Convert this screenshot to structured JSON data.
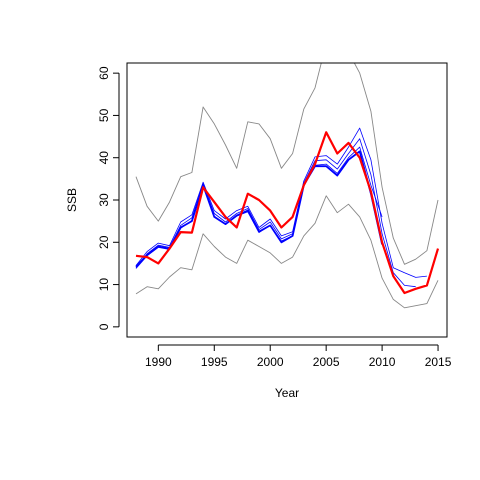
{
  "chart_data": {
    "type": "line",
    "title": "",
    "xlabel": "Year",
    "ylabel": "SSB",
    "xlim": [
      1987.2,
      2015.8
    ],
    "ylim": [
      -2.4,
      62.4
    ],
    "xticks": [
      1990,
      1995,
      2000,
      2005,
      2010,
      2015
    ],
    "yticks": [
      0,
      10,
      20,
      30,
      40,
      50,
      60
    ],
    "grid": false,
    "legend": "none",
    "series": [
      {
        "color": "#ff0000",
        "width": 2.2,
        "x": [
          1988,
          1989,
          1990,
          1991,
          1992,
          1993,
          1994,
          1995,
          1996,
          1997,
          1998,
          1999,
          2000,
          2001,
          2002,
          2003,
          2004,
          2005,
          2006,
          2007,
          2008,
          2009,
          2010,
          2011,
          2012,
          2013,
          2014,
          2015
        ],
        "y": [
          16.8,
          16.5,
          15.0,
          18.5,
          22.4,
          22.3,
          33.0,
          29.5,
          26.0,
          23.5,
          31.5,
          30.0,
          27.5,
          23.5,
          26.0,
          33.5,
          38.5,
          46.0,
          41.0,
          43.5,
          40.0,
          32.0,
          20.0,
          12.0,
          8.0,
          9.0,
          9.8,
          18.5
        ]
      },
      {
        "color": "#0000ff",
        "width": 1.8,
        "x": [
          1988,
          1989,
          1990,
          1991,
          1992,
          1993,
          1994,
          1995,
          1996,
          1997,
          1998,
          1999,
          2000,
          2001,
          2002,
          2003,
          2004,
          2005,
          2006,
          2007,
          2008,
          2009,
          2010
        ],
        "y": [
          14.2,
          17.0,
          19.0,
          18.5,
          23.5,
          25.0,
          33.5,
          26.0,
          24.3,
          26.3,
          27.5,
          22.5,
          24.0,
          20.0,
          21.5,
          33.5,
          38.0,
          38.0,
          35.8,
          39.5,
          41.5,
          31.5,
          19.5
        ]
      },
      {
        "color": "#0000ff",
        "width": 0.8,
        "x": [
          1988,
          1989,
          1990,
          1991,
          1992,
          1993,
          1994,
          1995,
          1996,
          1997,
          1998,
          1999,
          2000,
          2001,
          2002,
          2003,
          2004,
          2005,
          2006,
          2007,
          2008,
          2009,
          2010,
          2011,
          2012,
          2013,
          2014
        ],
        "y": [
          14.5,
          17.8,
          19.8,
          19.2,
          24.8,
          26.5,
          34.2,
          27.5,
          25.5,
          27.5,
          28.5,
          23.5,
          25.5,
          21.5,
          22.5,
          34.5,
          40.2,
          40.5,
          38.5,
          42.5,
          47.0,
          39.5,
          24.5,
          14.0,
          12.8,
          11.7,
          12.0
        ]
      },
      {
        "color": "#0000ff",
        "width": 0.8,
        "x": [
          1988,
          1989,
          1990,
          1991,
          1992,
          1993,
          1994,
          1995,
          1996,
          1997,
          1998,
          1999,
          2000,
          2001,
          2002,
          2003,
          2004,
          2005,
          2006,
          2007,
          2008,
          2009,
          2010,
          2011,
          2012,
          2013
        ],
        "y": [
          14.0,
          17.3,
          19.3,
          18.8,
          24.0,
          25.8,
          33.8,
          26.8,
          24.8,
          26.8,
          28.0,
          23.0,
          24.8,
          20.8,
          22.0,
          34.0,
          39.3,
          39.5,
          37.3,
          41.0,
          44.5,
          36.0,
          22.0,
          12.8,
          9.8,
          9.5
        ]
      },
      {
        "color": "#0000ff",
        "width": 0.8,
        "x": [
          1988,
          1989,
          1990,
          1991,
          1992,
          1993,
          1994,
          1995,
          1996,
          1997,
          1998,
          1999,
          2000,
          2001,
          2002,
          2003,
          2004,
          2005,
          2006,
          2007,
          2008,
          2009,
          2010
        ],
        "y": [
          13.8,
          16.8,
          18.8,
          18.3,
          23.3,
          25.2,
          33.2,
          26.2,
          24.3,
          26.2,
          27.2,
          22.3,
          24.0,
          20.3,
          21.5,
          33.3,
          38.2,
          38.5,
          36.3,
          40.0,
          42.5,
          33.5,
          26.0
        ]
      },
      {
        "color": "#888888",
        "width": 0.9,
        "x": [
          1988,
          1989,
          1990,
          1991,
          1992,
          1993,
          1994,
          1995,
          1996,
          1997,
          1998,
          1999,
          2000,
          2001,
          2002,
          2003,
          2004,
          2005,
          2006,
          2007,
          2008,
          2009,
          2010,
          2011,
          2012,
          2013,
          2014,
          2015
        ],
        "y": [
          35.5,
          28.5,
          25.0,
          29.5,
          35.5,
          36.5,
          52.0,
          48.0,
          43.0,
          37.5,
          48.5,
          48.0,
          44.5,
          37.5,
          41.0,
          51.5,
          56.5,
          67.0,
          67.5,
          65.0,
          60.0,
          51.0,
          33.0,
          21.0,
          14.8,
          16.0,
          18.0,
          30.0
        ]
      },
      {
        "color": "#888888",
        "width": 0.9,
        "x": [
          1988,
          1989,
          1990,
          1991,
          1992,
          1993,
          1994,
          1995,
          1996,
          1997,
          1998,
          1999,
          2000,
          2001,
          2002,
          2003,
          2004,
          2005,
          2006,
          2007,
          2008,
          2009,
          2010,
          2011,
          2012,
          2013,
          2014,
          2015
        ],
        "y": [
          7.8,
          9.5,
          9.0,
          11.8,
          14.0,
          13.5,
          22.0,
          19.0,
          16.5,
          15.0,
          20.5,
          19.0,
          17.5,
          15.0,
          16.5,
          21.5,
          24.5,
          31.0,
          27.0,
          29.0,
          26.0,
          20.5,
          11.5,
          6.5,
          4.5,
          5.0,
          5.5,
          11.0
        ]
      }
    ]
  }
}
